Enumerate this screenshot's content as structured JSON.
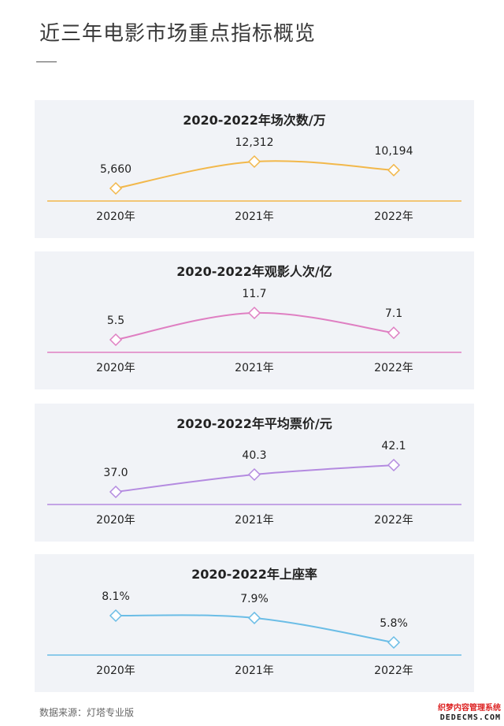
{
  "page": {
    "title": "近三年电影市场重点指标概览",
    "source": "数据来源：灯塔专业版",
    "watermark_top": "织梦内容管理系统",
    "watermark_bottom": "DEDECMS.COM"
  },
  "chart_data": [
    {
      "type": "line",
      "title": "2020-2022年场次数/万",
      "categories": [
        "2020年",
        "2021年",
        "2022年"
      ],
      "values": [
        5660,
        12312,
        10194
      ],
      "value_labels": [
        "5,660",
        "12,312",
        "10,194"
      ],
      "color": "#f2b84b",
      "ylim": [
        0,
        13000
      ],
      "grid": false,
      "marker": "diamond"
    },
    {
      "type": "line",
      "title": "2020-2022年观影人次/亿",
      "categories": [
        "2020年",
        "2021年",
        "2022年"
      ],
      "values": [
        5.5,
        11.7,
        7.1
      ],
      "value_labels": [
        "5.5",
        "11.7",
        "7.1"
      ],
      "color": "#df7fc2",
      "ylim": [
        0,
        13
      ],
      "grid": false,
      "marker": "diamond"
    },
    {
      "type": "line",
      "title": "2020-2022年平均票价/元",
      "categories": [
        "2020年",
        "2021年",
        "2022年"
      ],
      "values": [
        37.0,
        40.3,
        42.1
      ],
      "value_labels": [
        "37.0",
        "40.3",
        "42.1"
      ],
      "color": "#b48ae0",
      "ylim": [
        0,
        45
      ],
      "grid": false,
      "marker": "diamond"
    },
    {
      "type": "line",
      "title": "2020-2022年上座率",
      "categories": [
        "2020年",
        "2021年",
        "2022年"
      ],
      "values": [
        8.1,
        7.9,
        5.8
      ],
      "value_labels": [
        "8.1%",
        "7.9%",
        "5.8%"
      ],
      "color": "#6bbde6",
      "ylim": [
        0,
        9
      ],
      "grid": false,
      "marker": "diamond"
    }
  ]
}
